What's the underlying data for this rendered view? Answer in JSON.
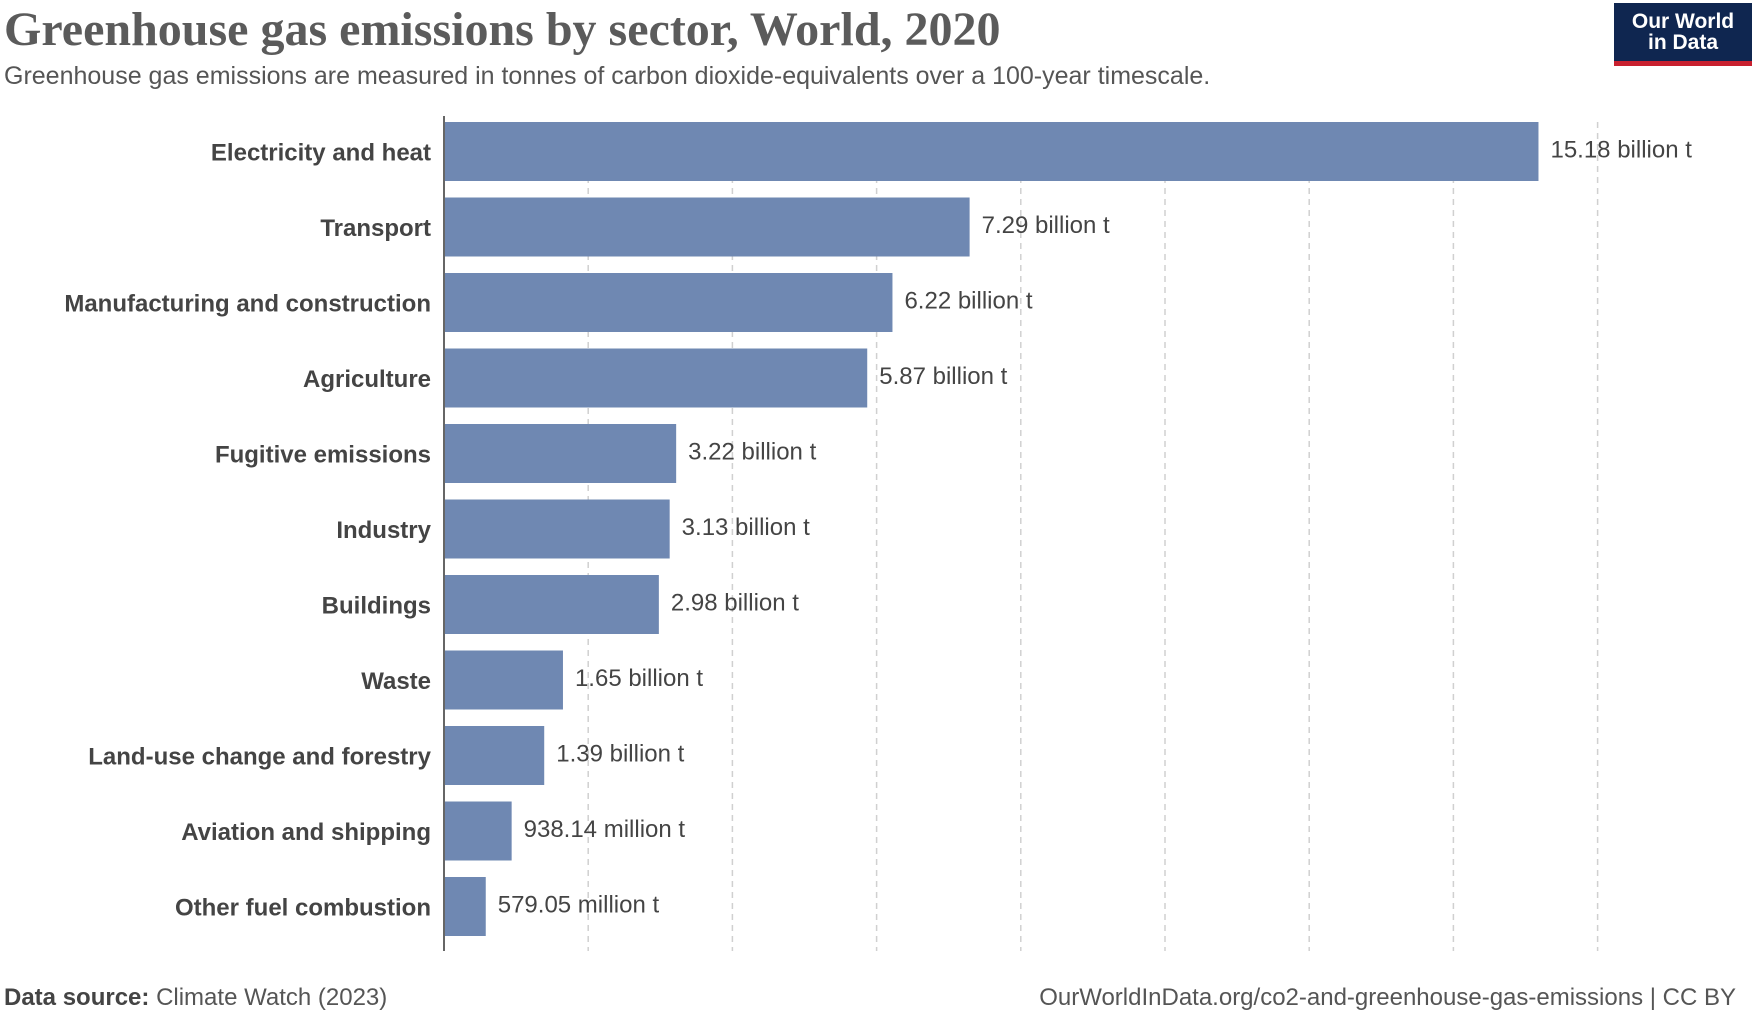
{
  "header": {
    "title": "Greenhouse gas emissions by sector, World, 2020",
    "subtitle": "Greenhouse gas emissions are measured in tonnes of carbon dioxide-equivalents over a 100-year timescale.",
    "logo_line1": "Our World",
    "logo_line2": "in Data"
  },
  "footer": {
    "source_label": "Data source:",
    "source_value": "Climate Watch (2023)",
    "url": "OurWorldInData.org/co2-and-greenhouse-gas-emissions | CC BY"
  },
  "colors": {
    "bar": "#6f88b2",
    "grid": "#d0d0d0",
    "logo_bg": "#0f2650",
    "logo_accent": "#c8202f"
  },
  "chart_data": {
    "type": "bar",
    "orientation": "horizontal",
    "categories": [
      "Electricity and heat",
      "Transport",
      "Manufacturing and construction",
      "Agriculture",
      "Fugitive emissions",
      "Industry",
      "Buildings",
      "Waste",
      "Land-use change and forestry",
      "Aviation and shipping",
      "Other fuel combustion"
    ],
    "values": [
      15.18,
      7.29,
      6.22,
      5.87,
      3.22,
      3.13,
      2.98,
      1.65,
      1.39,
      0.93814,
      0.57905
    ],
    "value_labels": [
      "15.18 billion t",
      "7.29 billion t",
      "6.22 billion t",
      "5.87 billion t",
      "3.22 billion t",
      "3.13 billion t",
      "2.98 billion t",
      "1.65 billion t",
      "1.39 billion t",
      "938.14 million t",
      "579.05 million t"
    ],
    "unit": "billion t",
    "xlim": [
      0,
      16
    ],
    "grid": true,
    "grid_step": 2
  }
}
